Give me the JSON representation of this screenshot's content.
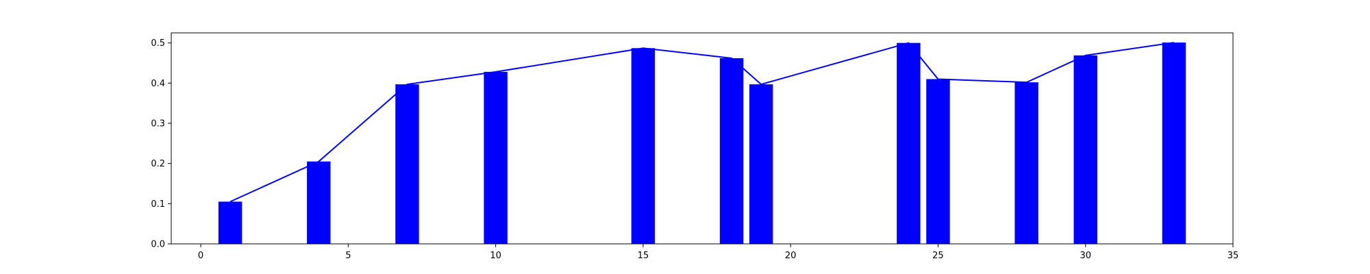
{
  "chart_data": {
    "type": "bar",
    "title": "",
    "xlabel": "",
    "ylabel": "",
    "xlim": [
      -1,
      35
    ],
    "ylim": [
      0,
      0.525
    ],
    "grid": false,
    "x_ticks": [
      0,
      5,
      10,
      15,
      20,
      25,
      30,
      35
    ],
    "y_ticks": [
      0.0,
      0.1,
      0.2,
      0.3,
      0.4,
      0.5
    ],
    "x_tick_labels": [
      "0",
      "5",
      "10",
      "15",
      "20",
      "25",
      "30",
      "35"
    ],
    "y_tick_labels": [
      "0.0",
      "0.1",
      "0.2",
      "0.3",
      "0.4",
      "0.5"
    ],
    "bar_width": 0.8,
    "x": [
      1,
      4,
      7,
      10,
      15,
      18,
      19,
      24,
      25,
      28,
      30,
      33
    ],
    "values": [
      0.105,
      0.205,
      0.397,
      0.428,
      0.487,
      0.462,
      0.397,
      0.5,
      0.41,
      0.402,
      0.469,
      0.501
    ],
    "bar_color": "#0000ff",
    "line_color": "#0000ff"
  }
}
